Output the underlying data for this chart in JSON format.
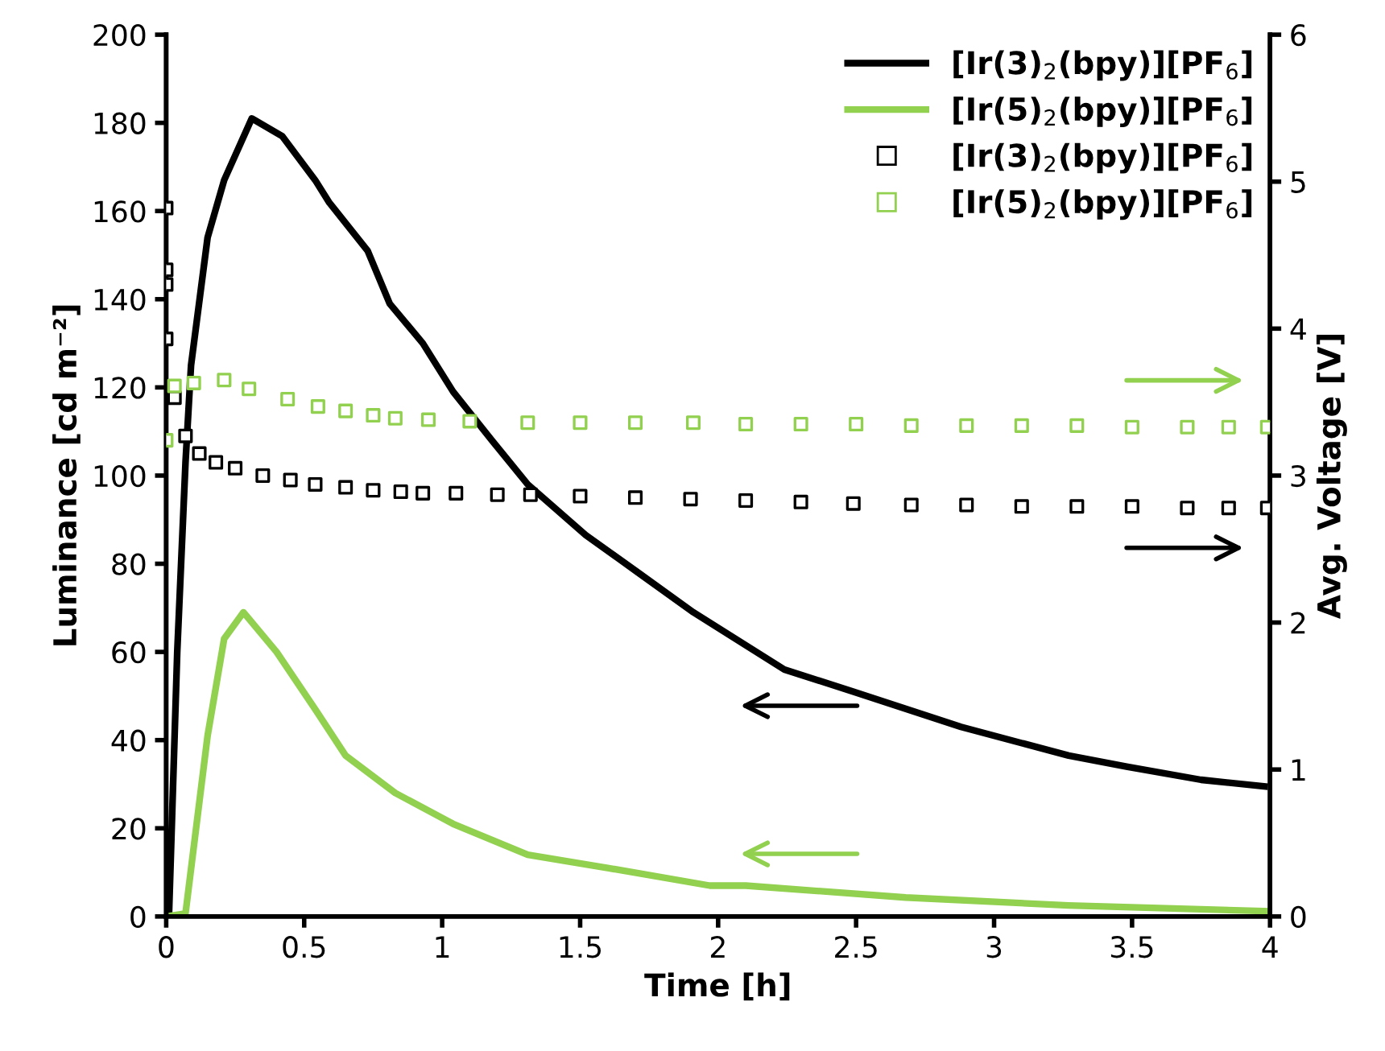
{
  "chart_data": {
    "type": "line",
    "xlabel": "Time [h]",
    "ylabel": "Luminance [cd m⁻²]",
    "y2label": "Avg. Voltage [V]",
    "xlim": [
      0,
      4
    ],
    "xticks": [
      0,
      0.5,
      1,
      1.5,
      2,
      2.5,
      3,
      3.5,
      4
    ],
    "ylim": [
      0,
      200
    ],
    "yticks": [
      0,
      20,
      40,
      60,
      80,
      100,
      120,
      140,
      160,
      180,
      200
    ],
    "y2lim": [
      0,
      6
    ],
    "y2ticks": [
      0,
      1,
      2,
      3,
      4,
      5,
      6
    ],
    "grid": false,
    "legend": "top right",
    "series": [
      {
        "name": "[Ir(3)$_{2}$(bpy)][PF$_{6}$]",
        "color": "#000000",
        "marker": "none",
        "x": [
          0,
          0.01,
          0.04,
          0.07,
          0.09,
          0.15,
          0.21,
          0.31,
          0.42,
          0.54,
          0.59,
          0.73,
          0.81,
          0.93,
          1.04,
          1.18,
          1.31,
          1.52,
          1.71,
          1.91,
          2.24,
          2.49,
          2.88,
          3.27,
          3.48,
          3.75,
          3.98
        ],
        "values": [
          0,
          0,
          60,
          103,
          125,
          154,
          167,
          181,
          177,
          167,
          162,
          151,
          139,
          130,
          119,
          108,
          98,
          86.5,
          78,
          69,
          56,
          51,
          43,
          36.5,
          34,
          31,
          29.5
        ]
      },
      {
        "name": "[Ir(5)$_{2}$(bpy)][PF$_{6}$]",
        "color": "#92d050",
        "marker": "none",
        "x": [
          0,
          0.07,
          0.15,
          0.21,
          0.28,
          0.4,
          0.54,
          0.65,
          0.83,
          1.04,
          1.31,
          1.6,
          1.97,
          2.1,
          2.68,
          3.27,
          3.99
        ],
        "values": [
          0,
          0.7,
          41,
          63,
          69,
          60,
          47,
          36.5,
          28,
          21,
          14,
          11,
          7,
          7,
          4.3,
          2.5,
          1.2
        ]
      },
      {
        "name": "[Ir(3)$_{2}$(bpy)][PF$_{6}$]",
        "type": "scatter",
        "axis": "y2",
        "color": "#000000",
        "marker": "square",
        "x": [
          0,
          0,
          0,
          0,
          0.03,
          0.07,
          0.12,
          0.18,
          0.25,
          0.35,
          0.45,
          0.54,
          0.65,
          0.75,
          0.85,
          0.93,
          1.05,
          1.2,
          1.32,
          1.5,
          1.7,
          1.9,
          2.1,
          2.3,
          2.49,
          2.7,
          2.9,
          3.1,
          3.3,
          3.5,
          3.7,
          3.85,
          3.99
        ],
        "values": [
          4.82,
          4.4,
          4.3,
          3.93,
          3.53,
          3.27,
          3.15,
          3.09,
          3.05,
          3.0,
          2.97,
          2.94,
          2.92,
          2.9,
          2.89,
          2.88,
          2.88,
          2.87,
          2.87,
          2.86,
          2.85,
          2.84,
          2.83,
          2.82,
          2.81,
          2.8,
          2.8,
          2.79,
          2.79,
          2.79,
          2.78,
          2.78,
          2.78
        ]
      },
      {
        "name": "[Ir(5)$_{2}$(bpy)][PF$_{6}$]",
        "type": "scatter",
        "axis": "y2",
        "color": "#92d050",
        "marker": "square",
        "x": [
          0,
          0.03,
          0.1,
          0.21,
          0.3,
          0.44,
          0.55,
          0.65,
          0.75,
          0.83,
          0.95,
          1.1,
          1.31,
          1.5,
          1.7,
          1.91,
          2.1,
          2.3,
          2.5,
          2.7,
          2.9,
          3.1,
          3.3,
          3.5,
          3.7,
          3.85,
          3.99
        ],
        "values": [
          3.24,
          3.61,
          3.63,
          3.65,
          3.59,
          3.52,
          3.47,
          3.44,
          3.41,
          3.39,
          3.38,
          3.37,
          3.36,
          3.36,
          3.36,
          3.36,
          3.35,
          3.35,
          3.35,
          3.34,
          3.34,
          3.34,
          3.34,
          3.33,
          3.33,
          3.33,
          3.33
        ]
      }
    ]
  }
}
